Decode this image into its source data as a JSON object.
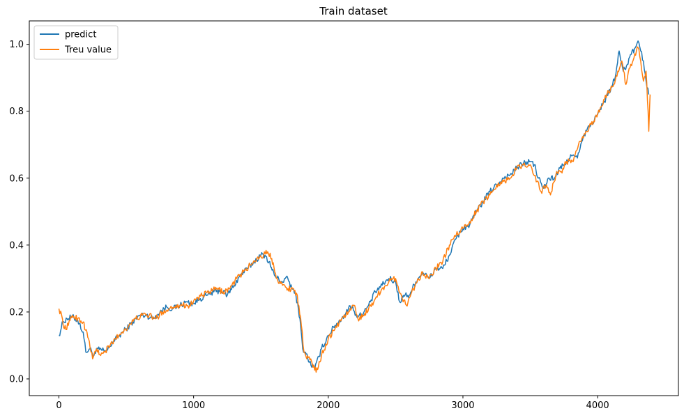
{
  "chart_data": {
    "type": "line",
    "title": "Train dataset",
    "xlabel": "",
    "ylabel": "",
    "xlim": [
      -220,
      4600
    ],
    "ylim": [
      -0.05,
      1.07
    ],
    "xticks": [
      0,
      1000,
      2000,
      3000,
      4000
    ],
    "xtick_labels": [
      "0",
      "1000",
      "2000",
      "3000",
      "4000"
    ],
    "yticks": [
      0.0,
      0.2,
      0.4,
      0.6,
      0.8,
      1.0
    ],
    "ytick_labels": [
      "0.0",
      "0.2",
      "0.4",
      "0.6",
      "0.8",
      "1.0"
    ],
    "grid": false,
    "legend_position": "top-left",
    "series": [
      {
        "name": "predict",
        "color": "#1f77b4",
        "x": [
          0,
          30,
          60,
          100,
          140,
          180,
          200,
          230,
          260,
          290,
          320,
          350,
          400,
          450,
          500,
          550,
          600,
          650,
          700,
          750,
          800,
          850,
          900,
          950,
          1000,
          1050,
          1100,
          1150,
          1200,
          1250,
          1300,
          1350,
          1400,
          1450,
          1500,
          1530,
          1560,
          1600,
          1650,
          1700,
          1730,
          1760,
          1790,
          1810,
          1830,
          1860,
          1900,
          1950,
          2000,
          2050,
          2100,
          2150,
          2180,
          2200,
          2250,
          2300,
          2350,
          2400,
          2450,
          2500,
          2530,
          2560,
          2600,
          2650,
          2700,
          2750,
          2800,
          2850,
          2900,
          2950,
          3000,
          3050,
          3100,
          3150,
          3200,
          3250,
          3300,
          3350,
          3400,
          3450,
          3500,
          3530,
          3560,
          3600,
          3640,
          3680,
          3720,
          3760,
          3800,
          3850,
          3900,
          3950,
          4000,
          4050,
          4100,
          4130,
          4160,
          4190,
          4220,
          4250,
          4280,
          4300,
          4320,
          4340,
          4360,
          4380
        ],
        "values": [
          0.13,
          0.17,
          0.18,
          0.185,
          0.175,
          0.14,
          0.08,
          0.09,
          0.07,
          0.09,
          0.085,
          0.08,
          0.11,
          0.13,
          0.15,
          0.17,
          0.19,
          0.19,
          0.18,
          0.2,
          0.215,
          0.21,
          0.22,
          0.23,
          0.225,
          0.24,
          0.25,
          0.26,
          0.265,
          0.25,
          0.28,
          0.31,
          0.33,
          0.35,
          0.37,
          0.37,
          0.35,
          0.31,
          0.29,
          0.3,
          0.27,
          0.25,
          0.18,
          0.09,
          0.08,
          0.05,
          0.03,
          0.09,
          0.13,
          0.16,
          0.18,
          0.21,
          0.22,
          0.19,
          0.19,
          0.22,
          0.26,
          0.28,
          0.3,
          0.29,
          0.23,
          0.25,
          0.25,
          0.29,
          0.32,
          0.3,
          0.33,
          0.33,
          0.37,
          0.42,
          0.45,
          0.46,
          0.5,
          0.53,
          0.56,
          0.58,
          0.6,
          0.61,
          0.63,
          0.645,
          0.65,
          0.64,
          0.6,
          0.57,
          0.6,
          0.6,
          0.63,
          0.64,
          0.67,
          0.66,
          0.73,
          0.76,
          0.79,
          0.83,
          0.87,
          0.9,
          0.98,
          0.92,
          0.94,
          0.97,
          0.99,
          1.01,
          0.98,
          0.95,
          0.89,
          0.85
        ]
      },
      {
        "name": "Treu value",
        "color": "#ff7f0e",
        "x": [
          0,
          20,
          40,
          70,
          100,
          140,
          180,
          220,
          250,
          280,
          310,
          340,
          380,
          420,
          470,
          520,
          570,
          620,
          670,
          720,
          770,
          820,
          870,
          920,
          970,
          1020,
          1070,
          1120,
          1170,
          1220,
          1270,
          1320,
          1370,
          1420,
          1470,
          1520,
          1550,
          1580,
          1620,
          1660,
          1700,
          1740,
          1770,
          1800,
          1820,
          1840,
          1870,
          1910,
          1950,
          2000,
          2050,
          2100,
          2150,
          2190,
          2220,
          2260,
          2300,
          2350,
          2400,
          2450,
          2500,
          2550,
          2580,
          2620,
          2660,
          2700,
          2750,
          2800,
          2850,
          2900,
          2950,
          3000,
          3050,
          3100,
          3150,
          3200,
          3250,
          3300,
          3350,
          3400,
          3450,
          3500,
          3550,
          3580,
          3620,
          3650,
          3690,
          3730,
          3770,
          3820,
          3870,
          3920,
          3970,
          4020,
          4070,
          4120,
          4150,
          4180,
          4210,
          4240,
          4270,
          4300,
          4320,
          4340,
          4360,
          4375,
          4380,
          4390
        ],
        "values": [
          0.21,
          0.19,
          0.15,
          0.16,
          0.19,
          0.18,
          0.17,
          0.12,
          0.06,
          0.09,
          0.07,
          0.08,
          0.1,
          0.12,
          0.14,
          0.16,
          0.18,
          0.19,
          0.19,
          0.18,
          0.2,
          0.21,
          0.22,
          0.22,
          0.22,
          0.24,
          0.25,
          0.26,
          0.27,
          0.26,
          0.27,
          0.3,
          0.32,
          0.34,
          0.36,
          0.37,
          0.38,
          0.36,
          0.3,
          0.28,
          0.27,
          0.27,
          0.25,
          0.16,
          0.08,
          0.06,
          0.06,
          0.02,
          0.07,
          0.12,
          0.15,
          0.18,
          0.2,
          0.22,
          0.18,
          0.19,
          0.21,
          0.24,
          0.27,
          0.29,
          0.3,
          0.24,
          0.22,
          0.26,
          0.29,
          0.32,
          0.3,
          0.33,
          0.35,
          0.4,
          0.43,
          0.45,
          0.47,
          0.5,
          0.53,
          0.55,
          0.58,
          0.59,
          0.6,
          0.63,
          0.64,
          0.64,
          0.59,
          0.56,
          0.58,
          0.55,
          0.61,
          0.62,
          0.65,
          0.65,
          0.71,
          0.74,
          0.77,
          0.81,
          0.85,
          0.88,
          0.92,
          0.95,
          0.88,
          0.93,
          0.96,
          0.99,
          0.95,
          0.89,
          0.92,
          0.8,
          0.74,
          0.85
        ]
      }
    ]
  }
}
